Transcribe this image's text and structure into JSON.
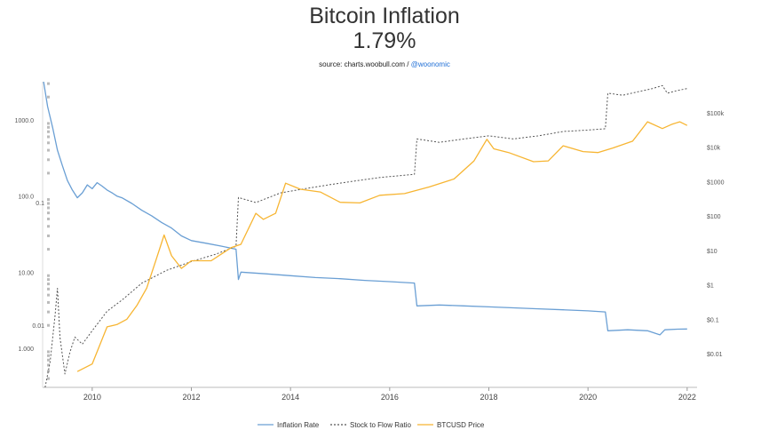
{
  "title": "Bitcoin Inflation",
  "subtitle": "1.79%",
  "source": {
    "prefix": "source: charts.woobull.com / ",
    "link": "@woonomic"
  },
  "colors": {
    "inflation": "#6a9fd4",
    "s2f": "#555555",
    "price": "#f7b532"
  },
  "chart_data": {
    "type": "line",
    "title": "Bitcoin Inflation",
    "x_ticks": [
      "2010",
      "2012",
      "2014",
      "2016",
      "2018",
      "2020",
      "2022"
    ],
    "x_range": [
      2009.0,
      2022.2
    ],
    "y_left_log": true,
    "y_left_ticks": [
      "1000.0",
      "100.0",
      "10.00",
      "1.000"
    ],
    "y_left_s2f_ticks": [
      "0.1",
      "0.01"
    ],
    "y_right_log": true,
    "y_right_ticks": [
      "$100k",
      "$10k",
      "$1000",
      "$100",
      "$10",
      "$1",
      "$0.1",
      "$0.01"
    ],
    "legend_position": "bottom",
    "series": [
      {
        "name": "Inflation Rate",
        "axis": "left",
        "x": [
          2009.02,
          2009.1,
          2009.2,
          2009.3,
          2009.4,
          2009.5,
          2009.6,
          2009.7,
          2009.8,
          2009.9,
          2010.0,
          2010.1,
          2010.2,
          2010.3,
          2010.4,
          2010.5,
          2010.6,
          2010.8,
          2011.0,
          2011.2,
          2011.4,
          2011.6,
          2011.8,
          2012.0,
          2012.3,
          2012.6,
          2012.9,
          2012.95,
          2013.0,
          2013.5,
          2014.0,
          2014.5,
          2015.0,
          2015.5,
          2016.0,
          2016.5,
          2016.55,
          2017.0,
          2017.5,
          2018.0,
          2018.5,
          2019.0,
          2019.5,
          2020.0,
          2020.35,
          2020.4,
          2020.8,
          2021.2,
          2021.45,
          2021.55,
          2021.8,
          2022.0
        ],
        "values": [
          5000,
          1500,
          800,
          400,
          250,
          160,
          120,
          95,
          110,
          140,
          125,
          150,
          135,
          120,
          110,
          100,
          95,
          80,
          65,
          55,
          45,
          38,
          30,
          26,
          24,
          22,
          20,
          8,
          10,
          9.5,
          9,
          8.5,
          8.2,
          7.8,
          7.5,
          7.2,
          3.6,
          3.7,
          3.6,
          3.5,
          3.4,
          3.3,
          3.2,
          3.1,
          3.0,
          1.7,
          1.75,
          1.7,
          1.5,
          1.75,
          1.78,
          1.79
        ]
      },
      {
        "name": "Stock to Flow Ratio",
        "axis": "left_s2f",
        "x": [
          2009.05,
          2009.15,
          2009.25,
          2009.3,
          2009.35,
          2009.45,
          2009.55,
          2009.65,
          2009.8,
          2010.0,
          2010.3,
          2010.6,
          2011.0,
          2011.5,
          2012.0,
          2012.5,
          2012.9,
          2012.95,
          2013.3,
          2013.8,
          2014.3,
          2014.8,
          2015.3,
          2015.8,
          2016.5,
          2016.55,
          2017.0,
          2017.5,
          2018.0,
          2018.5,
          2019.0,
          2019.5,
          2020.0,
          2020.35,
          2020.4,
          2020.7,
          2021.0,
          2021.3,
          2021.5,
          2021.6,
          2021.8,
          2022.0
        ],
        "values": [
          0.003,
          0.005,
          0.012,
          0.02,
          0.008,
          0.004,
          0.006,
          0.008,
          0.007,
          0.009,
          0.013,
          0.016,
          0.022,
          0.028,
          0.033,
          0.038,
          0.044,
          0.11,
          0.1,
          0.12,
          0.13,
          0.14,
          0.15,
          0.16,
          0.17,
          0.33,
          0.31,
          0.33,
          0.35,
          0.33,
          0.35,
          0.38,
          0.39,
          0.4,
          0.78,
          0.75,
          0.8,
          0.85,
          0.9,
          0.78,
          0.82,
          0.85
        ]
      },
      {
        "name": "BTCUSD Price",
        "axis": "right",
        "x": [
          2009.7,
          2010.0,
          2010.3,
          2010.5,
          2010.7,
          2010.9,
          2011.1,
          2011.3,
          2011.45,
          2011.6,
          2011.8,
          2012.0,
          2012.4,
          2012.8,
          2013.0,
          2013.3,
          2013.45,
          2013.7,
          2013.9,
          2014.2,
          2014.6,
          2015.0,
          2015.4,
          2015.8,
          2016.3,
          2016.8,
          2017.3,
          2017.7,
          2017.96,
          2018.1,
          2018.4,
          2018.9,
          2019.2,
          2019.5,
          2019.9,
          2020.2,
          2020.5,
          2020.9,
          2021.2,
          2021.5,
          2021.7,
          2021.85,
          2022.0
        ],
        "values": [
          0.003,
          0.005,
          0.06,
          0.07,
          0.1,
          0.25,
          0.8,
          6,
          28,
          7,
          3,
          5,
          5,
          12,
          15,
          120,
          80,
          120,
          900,
          600,
          500,
          250,
          240,
          400,
          450,
          700,
          1200,
          4000,
          17000,
          9000,
          7000,
          3800,
          4000,
          11000,
          7500,
          7000,
          9500,
          15000,
          55000,
          35000,
          47000,
          55000,
          43000
        ]
      }
    ]
  },
  "legend": {
    "items": [
      {
        "label": "Inflation Rate"
      },
      {
        "label": "Stock to Flow Ratio"
      },
      {
        "label": "BTCUSD Price"
      }
    ]
  }
}
